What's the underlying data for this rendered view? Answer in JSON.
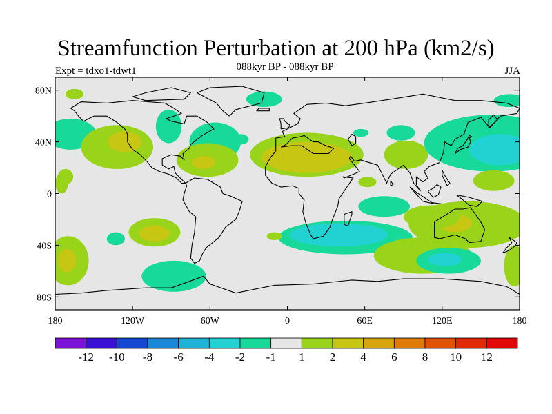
{
  "title": "Streamfunction Perturbation at 200 hPa (km2/s)",
  "subtitle": "088kyr BP - 088kyr BP",
  "experiment": "Expt = tdxo1-tdwt1",
  "season": "JJA",
  "map": {
    "projection": "cylindrical-equidistant",
    "lon_range": [
      -180,
      180
    ],
    "lat_range": [
      -90,
      90
    ],
    "background_color": "#e6e6e6",
    "y_ticks": [
      {
        "lat": 80,
        "label": "80N"
      },
      {
        "lat": 40,
        "label": "40N"
      },
      {
        "lat": 0,
        "label": "0"
      },
      {
        "lat": -40,
        "label": "40S"
      },
      {
        "lat": -80,
        "label": "80S"
      }
    ],
    "x_ticks": [
      {
        "lon": -180,
        "label": "180"
      },
      {
        "lon": -120,
        "label": "120W"
      },
      {
        "lon": -60,
        "label": "60W"
      },
      {
        "lon": 0,
        "label": "0"
      },
      {
        "lon": 60,
        "label": "60E"
      },
      {
        "lon": 120,
        "label": "120E"
      },
      {
        "lon": 180,
        "label": "180"
      }
    ],
    "field_blobs": [
      {
        "lon": -168,
        "lat": 46,
        "rlon": 20,
        "rlat": 12,
        "level": "-2"
      },
      {
        "lon": -172,
        "lat": 13,
        "rlon": 6,
        "rlat": 6,
        "level": "1"
      },
      {
        "lon": -132,
        "lat": 36,
        "rlon": 28,
        "rlat": 17,
        "level": "1"
      },
      {
        "lon": -126,
        "lat": 40,
        "rlon": 13,
        "rlat": 8,
        "level": "2"
      },
      {
        "lon": -165,
        "lat": 77,
        "rlon": 7,
        "rlat": 4,
        "level": "1"
      },
      {
        "lon": -92,
        "lat": 52,
        "rlon": 10,
        "rlat": 13,
        "level": "-2"
      },
      {
        "lon": -56,
        "lat": 40,
        "rlon": 20,
        "rlat": 15,
        "level": "-2"
      },
      {
        "lon": -36,
        "lat": 42,
        "rlon": 6,
        "rlat": 4,
        "level": "-2"
      },
      {
        "lon": -62,
        "lat": 26,
        "rlon": 24,
        "rlat": 13,
        "level": "1"
      },
      {
        "lon": -65,
        "lat": 24,
        "rlon": 9,
        "rlat": 5,
        "level": "2"
      },
      {
        "lon": -18,
        "lat": 73,
        "rlon": 14,
        "rlat": 6,
        "level": "-2"
      },
      {
        "lon": 15,
        "lat": 30,
        "rlon": 44,
        "rlat": 17,
        "level": "1"
      },
      {
        "lon": 15,
        "lat": 28,
        "rlon": 35,
        "rlat": 12,
        "level": "2"
      },
      {
        "lon": 0,
        "lat": 26,
        "rlon": 16,
        "rlat": 8,
        "level": "2"
      },
      {
        "lon": 57,
        "lat": 47,
        "rlon": 6,
        "rlat": 3,
        "level": "-2"
      },
      {
        "lon": 62,
        "lat": 9,
        "rlon": 7,
        "rlat": 4,
        "level": "1"
      },
      {
        "lon": 88,
        "lat": 47,
        "rlon": 11,
        "rlat": 6,
        "level": "-2"
      },
      {
        "lon": 92,
        "lat": 30,
        "rlon": 17,
        "rlat": 11,
        "level": "1"
      },
      {
        "lon": 158,
        "lat": 39,
        "rlon": 52,
        "rlat": 22,
        "level": "-2"
      },
      {
        "lon": 165,
        "lat": 34,
        "rlon": 24,
        "rlat": 12,
        "level": "-4"
      },
      {
        "lon": 172,
        "lat": 72,
        "rlon": 12,
        "rlat": 5,
        "level": "-2"
      },
      {
        "lon": 160,
        "lat": 10,
        "rlon": 16,
        "rlat": 8,
        "level": "1"
      },
      {
        "lon": 45,
        "lat": -34,
        "rlon": 52,
        "rlat": 13,
        "level": "-2"
      },
      {
        "lon": 40,
        "lat": -32,
        "rlon": 38,
        "rlat": 9,
        "level": "-4"
      },
      {
        "lon": 75,
        "lat": -10,
        "rlon": 20,
        "rlat": 8,
        "level": "-2"
      },
      {
        "lon": 140,
        "lat": -24,
        "rlon": 46,
        "rlat": 18,
        "level": "1"
      },
      {
        "lon": 130,
        "lat": -23,
        "rlon": 13,
        "rlat": 7,
        "level": "2"
      },
      {
        "lon": 112,
        "lat": -18,
        "rlon": 22,
        "rlat": 9,
        "level": "1"
      },
      {
        "lon": 105,
        "lat": -48,
        "rlon": 38,
        "rlat": 14,
        "level": "1"
      },
      {
        "lon": 125,
        "lat": -52,
        "rlon": 25,
        "rlat": 10,
        "level": "-2"
      },
      {
        "lon": 122,
        "lat": -51,
        "rlon": 13,
        "rlat": 5,
        "level": "-4"
      },
      {
        "lon": 176,
        "lat": -56,
        "rlon": 8,
        "rlat": 16,
        "level": "1"
      },
      {
        "lon": -170,
        "lat": -52,
        "rlon": 16,
        "rlat": 19,
        "level": "1"
      },
      {
        "lon": -171,
        "lat": -52,
        "rlon": 7,
        "rlat": 9,
        "level": "2"
      },
      {
        "lon": -103,
        "lat": -30,
        "rlon": 20,
        "rlat": 11,
        "level": "1"
      },
      {
        "lon": -103,
        "lat": -31,
        "rlon": 12,
        "rlat": 6,
        "level": "2"
      },
      {
        "lon": -133,
        "lat": -35,
        "rlon": 7,
        "rlat": 5,
        "level": "-2"
      },
      {
        "lon": -88,
        "lat": -64,
        "rlon": 25,
        "rlat": 12,
        "level": "-2"
      },
      {
        "lon": -10,
        "lat": -33,
        "rlon": 6,
        "rlat": 3,
        "level": "1"
      },
      {
        "lon": -175,
        "lat": 8,
        "rlon": 5,
        "rlat": 8,
        "level": "1"
      }
    ]
  },
  "colorbar": {
    "colors": [
      "#7a12d8",
      "#3a0fd6",
      "#1547d4",
      "#1988d8",
      "#1fb4d6",
      "#22d2d2",
      "#17da9a",
      "#e6e6e6",
      "#99d41a",
      "#c6c613",
      "#d6a60c",
      "#e07b07",
      "#e25206",
      "#e22a05",
      "#e20808"
    ],
    "labels": [
      "-12",
      "-10",
      "-8",
      "-6",
      "-4",
      "-2",
      "-1",
      "1",
      "2",
      "4",
      "6",
      "8",
      "10",
      "12"
    ]
  },
  "level_colors": {
    "-4": "#22d2d2",
    "-2": "#17da9a",
    "1": "#99d41a",
    "2": "#c6c613"
  },
  "land_outlines": {
    "north_america": [
      [
        -168,
        66
      ],
      [
        -160,
        71
      ],
      [
        -140,
        70
      ],
      [
        -120,
        72
      ],
      [
        -95,
        70
      ],
      [
        -88,
        66
      ],
      [
        -82,
        62
      ],
      [
        -94,
        58
      ],
      [
        -90,
        56
      ],
      [
        -80,
        54
      ],
      [
        -78,
        60
      ],
      [
        -70,
        60
      ],
      [
        -62,
        55
      ],
      [
        -57,
        50
      ],
      [
        -66,
        45
      ],
      [
        -70,
        42
      ],
      [
        -75,
        38
      ],
      [
        -76,
        35
      ],
      [
        -81,
        31
      ],
      [
        -80,
        26
      ],
      [
        -83,
        29
      ],
      [
        -90,
        30
      ],
      [
        -97,
        27
      ],
      [
        -97,
        22
      ],
      [
        -92,
        19
      ],
      [
        -88,
        21
      ],
      [
        -87,
        16
      ],
      [
        -83,
        12
      ],
      [
        -79,
        8
      ],
      [
        -82,
        8
      ],
      [
        -86,
        12
      ],
      [
        -92,
        15
      ],
      [
        -99,
        17
      ],
      [
        -105,
        20
      ],
      [
        -109,
        25
      ],
      [
        -114,
        30
      ],
      [
        -117,
        32
      ],
      [
        -120,
        34
      ],
      [
        -124,
        40
      ],
      [
        -124,
        46
      ],
      [
        -126,
        50
      ],
      [
        -132,
        55
      ],
      [
        -140,
        60
      ],
      [
        -150,
        60
      ],
      [
        -158,
        56
      ],
      [
        -162,
        60
      ],
      [
        -165,
        64
      ],
      [
        -168,
        66
      ]
    ],
    "south_america": [
      [
        -79,
        8
      ],
      [
        -72,
        12
      ],
      [
        -62,
        11
      ],
      [
        -52,
        5
      ],
      [
        -50,
        0
      ],
      [
        -44,
        -2
      ],
      [
        -35,
        -6
      ],
      [
        -37,
        -13
      ],
      [
        -40,
        -20
      ],
      [
        -48,
        -26
      ],
      [
        -53,
        -34
      ],
      [
        -58,
        -38
      ],
      [
        -63,
        -42
      ],
      [
        -66,
        -47
      ],
      [
        -68,
        -52
      ],
      [
        -72,
        -54
      ],
      [
        -75,
        -50
      ],
      [
        -74,
        -40
      ],
      [
        -72,
        -30
      ],
      [
        -71,
        -18
      ],
      [
        -76,
        -14
      ],
      [
        -81,
        -5
      ],
      [
        -80,
        0
      ],
      [
        -78,
        6
      ],
      [
        -79,
        8
      ]
    ],
    "greenland": [
      [
        -45,
        60
      ],
      [
        -40,
        65
      ],
      [
        -20,
        70
      ],
      [
        -18,
        78
      ],
      [
        -35,
        83
      ],
      [
        -60,
        82
      ],
      [
        -70,
        78
      ],
      [
        -55,
        70
      ],
      [
        -50,
        64
      ],
      [
        -45,
        60
      ]
    ],
    "eurasia_africa": [
      [
        -9,
        36
      ],
      [
        -9,
        43
      ],
      [
        -2,
        44
      ],
      [
        -4,
        48
      ],
      [
        2,
        51
      ],
      [
        8,
        54
      ],
      [
        10,
        58
      ],
      [
        5,
        62
      ],
      [
        15,
        69
      ],
      [
        30,
        70
      ],
      [
        45,
        68
      ],
      [
        60,
        70
      ],
      [
        80,
        73
      ],
      [
        105,
        77
      ],
      [
        130,
        72
      ],
      [
        150,
        72
      ],
      [
        170,
        70
      ],
      [
        180,
        66
      ],
      [
        178,
        62
      ],
      [
        165,
        60
      ],
      [
        157,
        51
      ],
      [
        150,
        59
      ],
      [
        140,
        55
      ],
      [
        137,
        46
      ],
      [
        130,
        42
      ],
      [
        127,
        37
      ],
      [
        122,
        40
      ],
      [
        121,
        32
      ],
      [
        118,
        24
      ],
      [
        110,
        21
      ],
      [
        106,
        17
      ],
      [
        109,
        12
      ],
      [
        105,
        9
      ],
      [
        100,
        13
      ],
      [
        100,
        7
      ],
      [
        103,
        2
      ],
      [
        98,
        8
      ],
      [
        95,
        16
      ],
      [
        90,
        22
      ],
      [
        80,
        15
      ],
      [
        77,
        8
      ],
      [
        73,
        16
      ],
      [
        70,
        22
      ],
      [
        60,
        25
      ],
      [
        57,
        26
      ],
      [
        52,
        25
      ],
      [
        49,
        29
      ],
      [
        48,
        27
      ],
      [
        56,
        17
      ],
      [
        44,
        12
      ],
      [
        43,
        13
      ],
      [
        51,
        12
      ],
      [
        44,
        2
      ],
      [
        40,
        -4
      ],
      [
        39,
        -10
      ],
      [
        35,
        -20
      ],
      [
        33,
        -26
      ],
      [
        28,
        -33
      ],
      [
        20,
        -35
      ],
      [
        18,
        -32
      ],
      [
        14,
        -22
      ],
      [
        12,
        -14
      ],
      [
        13,
        -5
      ],
      [
        9,
        0
      ],
      [
        9,
        4
      ],
      [
        4,
        6
      ],
      [
        -5,
        5
      ],
      [
        -12,
        8
      ],
      [
        -17,
        14
      ],
      [
        -17,
        21
      ],
      [
        -13,
        28
      ],
      [
        -9,
        33
      ],
      [
        -9,
        36
      ]
    ],
    "mediterranean": [
      [
        -5,
        36
      ],
      [
        3,
        37
      ],
      [
        11,
        37
      ],
      [
        20,
        31
      ],
      [
        32,
        31
      ],
      [
        36,
        35
      ],
      [
        30,
        37
      ],
      [
        24,
        40
      ],
      [
        20,
        40
      ],
      [
        13,
        45
      ],
      [
        10,
        44
      ],
      [
        4,
        43
      ],
      [
        -1,
        38
      ],
      [
        -5,
        36
      ]
    ],
    "australia": [
      [
        114,
        -22
      ],
      [
        114,
        -34
      ],
      [
        118,
        -35
      ],
      [
        130,
        -32
      ],
      [
        138,
        -35
      ],
      [
        141,
        -38
      ],
      [
        150,
        -37
      ],
      [
        153,
        -28
      ],
      [
        150,
        -22
      ],
      [
        145,
        -15
      ],
      [
        142,
        -11
      ],
      [
        136,
        -12
      ],
      [
        130,
        -12
      ],
      [
        122,
        -17
      ],
      [
        114,
        -22
      ]
    ],
    "antarctica": [
      [
        -180,
        -78
      ],
      [
        -160,
        -77
      ],
      [
        -140,
        -75
      ],
      [
        -110,
        -73
      ],
      [
        -90,
        -73
      ],
      [
        -65,
        -64
      ],
      [
        -60,
        -70
      ],
      [
        -40,
        -77
      ],
      [
        -10,
        -71
      ],
      [
        20,
        -70
      ],
      [
        50,
        -67
      ],
      [
        70,
        -68
      ],
      [
        90,
        -66
      ],
      [
        120,
        -66
      ],
      [
        150,
        -68
      ],
      [
        170,
        -72
      ],
      [
        180,
        -78
      ]
    ],
    "madagascar": [
      [
        44,
        -16
      ],
      [
        50,
        -14
      ],
      [
        50,
        -16
      ],
      [
        47,
        -25
      ],
      [
        44,
        -24
      ],
      [
        44,
        -16
      ]
    ],
    "japan": [
      [
        130,
        31
      ],
      [
        134,
        34
      ],
      [
        140,
        36
      ],
      [
        142,
        40
      ],
      [
        141,
        43
      ],
      [
        143,
        44
      ],
      [
        141,
        45
      ],
      [
        139,
        41
      ],
      [
        136,
        37
      ],
      [
        132,
        35
      ],
      [
        130,
        31
      ]
    ],
    "uk": [
      [
        -5,
        50
      ],
      [
        1,
        51
      ],
      [
        2,
        53
      ],
      [
        -2,
        56
      ],
      [
        -3,
        58
      ],
      [
        -6,
        58
      ],
      [
        -5,
        54
      ],
      [
        -5,
        50
      ]
    ],
    "indonesia": [
      [
        95,
        5
      ],
      [
        105,
        -6
      ],
      [
        114,
        -8
      ],
      [
        120,
        -8
      ],
      [
        112,
        -7
      ],
      [
        106,
        -3
      ],
      [
        100,
        1
      ],
      [
        95,
        5
      ]
    ],
    "borneo": [
      [
        109,
        2
      ],
      [
        113,
        -3
      ],
      [
        117,
        -1
      ],
      [
        119,
        5
      ],
      [
        116,
        7
      ],
      [
        113,
        4
      ],
      [
        109,
        2
      ]
    ],
    "new_guinea": [
      [
        131,
        -1
      ],
      [
        141,
        -3
      ],
      [
        151,
        -6
      ],
      [
        147,
        -10
      ],
      [
        141,
        -9
      ],
      [
        135,
        -4
      ],
      [
        131,
        -1
      ]
    ],
    "new_zealand": [
      [
        172,
        -34
      ],
      [
        178,
        -38
      ],
      [
        176,
        -41
      ],
      [
        172,
        -44
      ],
      [
        167,
        -46
      ],
      [
        170,
        -42
      ],
      [
        174,
        -38
      ],
      [
        172,
        -34
      ]
    ],
    "iceland": [
      [
        -24,
        64
      ],
      [
        -14,
        64
      ],
      [
        -14,
        66
      ],
      [
        -22,
        66
      ],
      [
        -24,
        64
      ]
    ],
    "philippines": [
      [
        120,
        18
      ],
      [
        122,
        14
      ],
      [
        126,
        8
      ],
      [
        124,
        6
      ],
      [
        122,
        10
      ],
      [
        120,
        14
      ],
      [
        120,
        18
      ]
    ],
    "canada_islands": [
      [
        -110,
        72
      ],
      [
        -80,
        73
      ],
      [
        -75,
        78
      ],
      [
        -90,
        82
      ],
      [
        -110,
        78
      ],
      [
        -120,
        75
      ],
      [
        -110,
        72
      ]
    ],
    "caspian": [
      [
        47,
        42
      ],
      [
        50,
        46
      ],
      [
        53,
        44
      ],
      [
        53,
        39
      ],
      [
        50,
        37
      ],
      [
        47,
        42
      ]
    ],
    "sri_lanka": [
      [
        80,
        10
      ],
      [
        82,
        7
      ],
      [
        80,
        6
      ],
      [
        80,
        10
      ]
    ],
    "kamchatka": [
      [
        156,
        51
      ],
      [
        163,
        57
      ],
      [
        160,
        61
      ],
      [
        156,
        57
      ],
      [
        156,
        51
      ]
    ]
  }
}
